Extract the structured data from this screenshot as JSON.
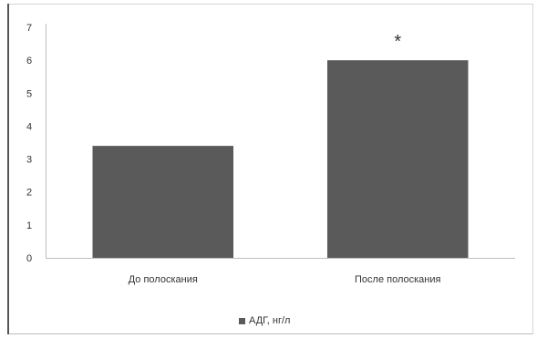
{
  "chart_data": {
    "type": "bar",
    "categories": [
      "До полоскания",
      "После полоскания"
    ],
    "series": [
      {
        "name": "АДГ, нг/л",
        "values": [
          3.4,
          6.0
        ],
        "color": "#5a5a5a"
      }
    ],
    "annotations": [
      {
        "category": "После полоскания",
        "text": "*"
      }
    ],
    "yticks": [
      "0",
      "1",
      "2",
      "3",
      "4",
      "5",
      "6",
      "7"
    ],
    "ylim": [
      0,
      7
    ],
    "grid": false,
    "legend_position": "bottom",
    "title": "",
    "xlabel": "",
    "ylabel": ""
  }
}
